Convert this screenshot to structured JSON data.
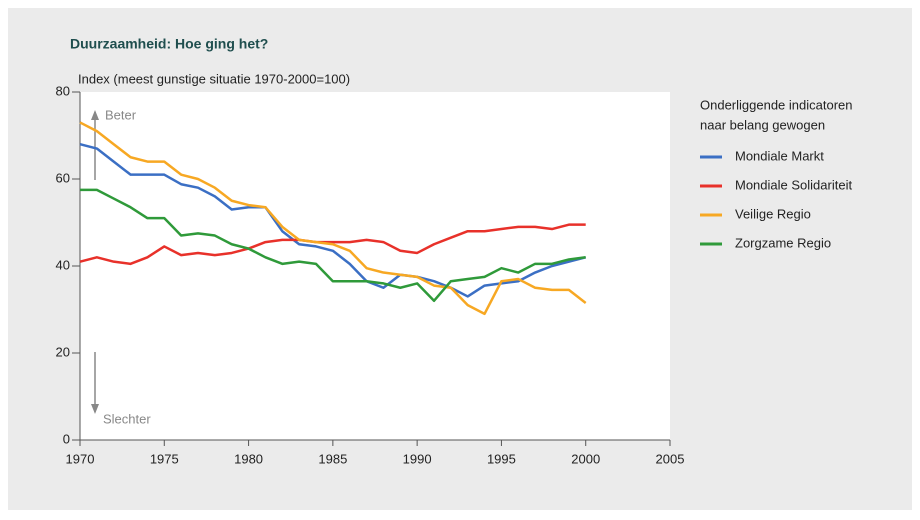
{
  "chart_data": {
    "type": "line",
    "title": "Duurzaamheid: Hoe ging het?",
    "y_label": "Index (meest gunstige situatie 1970-2000=100)",
    "annotations": [
      "Beter",
      "Slechter"
    ],
    "legend_title": [
      "Onderliggende indicatoren",
      "naar belang gewogen"
    ],
    "legend": "right",
    "x": [
      1970,
      1971,
      1972,
      1973,
      1974,
      1975,
      1976,
      1977,
      1978,
      1979,
      1980,
      1981,
      1982,
      1983,
      1984,
      1985,
      1986,
      1987,
      1988,
      1989,
      1990,
      1991,
      1992,
      1993,
      1994,
      1995,
      1996,
      1997,
      1998,
      1999,
      2000
    ],
    "series": [
      {
        "name": "Mondiale Markt",
        "color": "#3b6fc4",
        "values": [
          68,
          67,
          64,
          61,
          61,
          61,
          58.8,
          58,
          56,
          53,
          53.5,
          53.5,
          48,
          45,
          44.5,
          43.5,
          40.5,
          36.5,
          35,
          38,
          37.5,
          36.5,
          35,
          33,
          35.5,
          36,
          36.5,
          38.5,
          40,
          41,
          42
        ]
      },
      {
        "name": "Mondiale Solidariteit",
        "color": "#e8312a",
        "values": [
          41,
          42,
          41,
          40.5,
          42,
          44.5,
          42.5,
          43,
          42.5,
          43,
          44,
          45.5,
          46,
          46,
          45.5,
          45.5,
          45.5,
          46,
          45.5,
          43.5,
          43,
          45,
          46.5,
          48,
          48,
          48.5,
          49,
          49,
          48.5,
          49.5,
          49.5
        ]
      },
      {
        "name": "Veilige Regio",
        "color": "#f7a823",
        "values": [
          73,
          71,
          68,
          65,
          64,
          64,
          61,
          60,
          58,
          55,
          54,
          53.5,
          49,
          46,
          45.5,
          45,
          43.5,
          39.5,
          38.5,
          38,
          37.5,
          35.5,
          35,
          31,
          29,
          36.5,
          37,
          35,
          34.5,
          34.5,
          31.5
        ]
      },
      {
        "name": "Zorgzame Regio",
        "color": "#2f9a3a",
        "values": [
          57.5,
          57.5,
          55.5,
          53.5,
          51,
          51,
          47,
          47.5,
          47,
          45,
          44,
          42,
          40.5,
          41,
          40.5,
          36.5,
          36.5,
          36.5,
          36,
          35,
          36,
          32,
          36.5,
          37,
          37.5,
          39.5,
          38.5,
          40.5,
          40.5,
          41.5,
          42
        ]
      }
    ],
    "xlim": [
      1970,
      2005
    ],
    "xticks": [
      1970,
      1975,
      1980,
      1985,
      1990,
      1995,
      2000,
      2005
    ],
    "ylim": [
      0,
      80
    ],
    "yticks": [
      0,
      20,
      40,
      60,
      80
    ]
  }
}
